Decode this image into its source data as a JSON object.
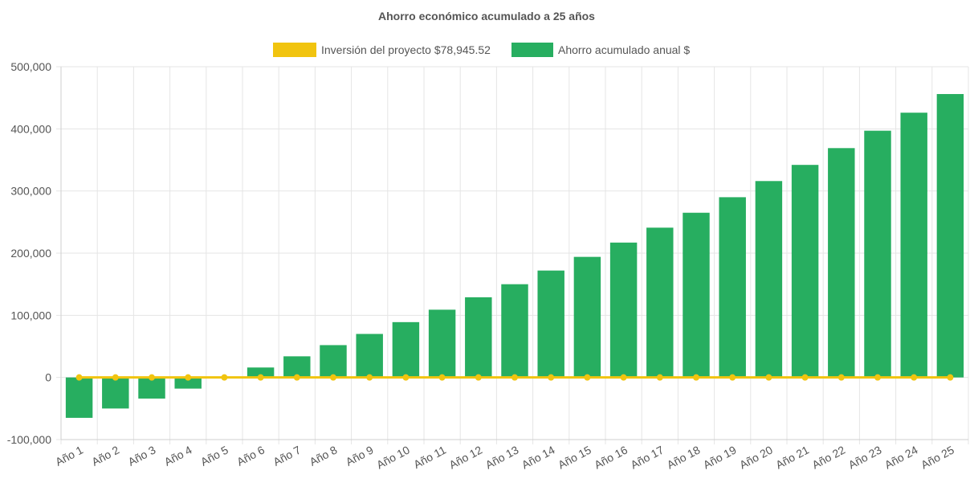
{
  "chart_data": {
    "type": "bar",
    "title": "Ahorro económico acumulado a 25 años",
    "categories": [
      "Año 1",
      "Año 2",
      "Año 3",
      "Año 4",
      "Año 5",
      "Año 6",
      "Año 7",
      "Año 8",
      "Año 9",
      "Año 10",
      "Año 11",
      "Año 12",
      "Año 13",
      "Año 14",
      "Año 15",
      "Año 16",
      "Año 17",
      "Año 18",
      "Año 19",
      "Año 20",
      "Año 21",
      "Año 22",
      "Año 23",
      "Año 24",
      "Año 25"
    ],
    "series": [
      {
        "name": "Inversión del proyecto $78,945.52",
        "type": "line",
        "color": "#f1c40f",
        "values": [
          0,
          0,
          0,
          0,
          0,
          0,
          0,
          0,
          0,
          0,
          0,
          0,
          0,
          0,
          0,
          0,
          0,
          0,
          0,
          0,
          0,
          0,
          0,
          0,
          0
        ]
      },
      {
        "name": "Ahorro acumulado anual $",
        "type": "bar",
        "color": "#27ae60",
        "values": [
          -65000,
          -50000,
          -34000,
          -18000,
          0,
          16000,
          34000,
          52000,
          70000,
          89000,
          109000,
          129000,
          150000,
          172000,
          194000,
          217000,
          241000,
          265000,
          290000,
          316000,
          342000,
          369000,
          397000,
          426000,
          456000
        ]
      }
    ],
    "ylim": [
      -100000,
      500000
    ],
    "yticks": [
      "500,000",
      "400,000",
      "300,000",
      "200,000",
      "100,000",
      "0",
      "-100,000"
    ],
    "ytick_values": [
      500000,
      400000,
      300000,
      200000,
      100000,
      0,
      -100000
    ],
    "grid": true,
    "legend_position": "top"
  }
}
